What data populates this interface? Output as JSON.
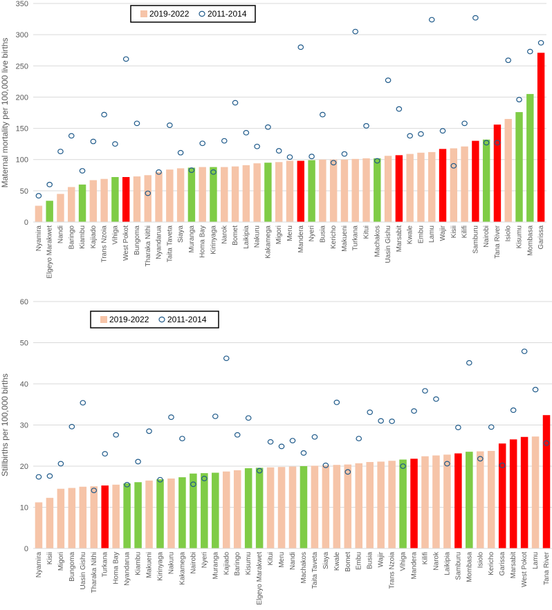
{
  "colors": {
    "neutral": "#f6c4a8",
    "green": "#7fcc46",
    "red": "#ff0000",
    "circle": "#1f5a8a",
    "grid": "#d9d9d9",
    "axis_text": "#595959"
  },
  "chart_data": [
    {
      "type": "bar",
      "ylabel": "Maternal mortality per 100,000 live births",
      "ylim": [
        0,
        350
      ],
      "yticks": [
        0,
        50,
        100,
        150,
        200,
        250,
        300,
        350
      ],
      "legend": {
        "position": "top-left",
        "items": [
          "2019-2022",
          "2011-2014"
        ]
      },
      "series_names": [
        "2019-2022",
        "2011-2014"
      ],
      "categories": [
        "Nyamira",
        "Elgeyo Marakwet",
        "Nandi",
        "Baringo",
        "Kiambu",
        "Kajiado",
        "Trans Nzoia",
        "Vihiga",
        "West Pokot",
        "Bungoma",
        "Tharaka Nithi",
        "Nyandarua",
        "Taita Taveta",
        "Siaya",
        "Muranga",
        "Homa Bay",
        "Kirinyaga",
        "Narok",
        "Bomet",
        "Laikipia",
        "Nakuru",
        "Kakamega",
        "Migori",
        "Meru",
        "Mandera",
        "Nyeri",
        "Busia",
        "Kericho",
        "Makueni",
        "Turkana",
        "Kitui",
        "Machakos",
        "Uasin Gishu",
        "Marsabit",
        "Kwale",
        "Embu",
        "Lamu",
        "Wajir",
        "Kisii",
        "Kilifi",
        "Samburu",
        "Nairobi",
        "Tana River",
        "Isiolo",
        "Kisumu",
        "Mombasa",
        "Garissa"
      ],
      "values_2019_2022": [
        26,
        34,
        45,
        56,
        60,
        67,
        69,
        72,
        72,
        73,
        75,
        80,
        84,
        86,
        87,
        88,
        88,
        88,
        89,
        91,
        94,
        95,
        96,
        98,
        98,
        99,
        100,
        100,
        100,
        101,
        102,
        102,
        106,
        107,
        109,
        111,
        112,
        117,
        118,
        121,
        130,
        132,
        156,
        165,
        176,
        205,
        271
      ],
      "values_2011_2014": [
        42,
        60,
        113,
        138,
        82,
        129,
        172,
        125,
        261,
        158,
        46,
        80,
        155,
        111,
        83,
        126,
        80,
        130,
        191,
        143,
        121,
        152,
        114,
        104,
        280,
        105,
        172,
        95,
        109,
        305,
        154,
        98,
        227,
        181,
        138,
        141,
        324,
        146,
        90,
        158,
        327,
        127,
        127,
        259,
        196,
        273,
        287
      ],
      "bar_colors": [
        "neutral",
        "green",
        "neutral",
        "neutral",
        "green",
        "neutral",
        "neutral",
        "green",
        "red",
        "neutral",
        "neutral",
        "neutral",
        "neutral",
        "neutral",
        "green",
        "neutral",
        "green",
        "neutral",
        "neutral",
        "neutral",
        "neutral",
        "green",
        "neutral",
        "neutral",
        "red",
        "green",
        "neutral",
        "neutral",
        "neutral",
        "neutral",
        "neutral",
        "green",
        "neutral",
        "red",
        "neutral",
        "neutral",
        "neutral",
        "red",
        "neutral",
        "neutral",
        "red",
        "green",
        "red",
        "neutral",
        "green",
        "green",
        "red"
      ]
    },
    {
      "type": "bar",
      "ylabel": "Stillbirths per 100,000 births",
      "ylim": [
        0,
        60
      ],
      "yticks": [
        0,
        10,
        20,
        30,
        40,
        50,
        60
      ],
      "legend": {
        "position": "top-left",
        "items": [
          "2019-2022",
          "2011-2014"
        ]
      },
      "series_names": [
        "2019-2022",
        "2011-2014"
      ],
      "categories": [
        "Nyamira",
        "Kisii",
        "Migori",
        "Bungoma",
        "Uasin Gishu",
        "Tharaka Nithi",
        "Turkana",
        "Homa Bay",
        "Nyandarua",
        "Kiambu",
        "Makueni",
        "Kirinyaga",
        "Nakuru",
        "Kakamega",
        "Nairobi",
        "Nyeri",
        "Muranga",
        "Kajiado",
        "Baringo",
        "Kisumu",
        "Elgeyo Marakwet",
        "Kitui",
        "Meru",
        "Nandi",
        "Machakos",
        "Taita Taveta",
        "Siaya",
        "Kwale",
        "Bomet",
        "Embu",
        "Busia",
        "Wajir",
        "Trans Nzoia",
        "Vihiga",
        "Mandera",
        "Kilifi",
        "Narok",
        "Laikipia",
        "Samburu",
        "Mombasa",
        "Isiolo",
        "Kericho",
        "Garissa",
        "Marsabit",
        "West Pokot",
        "Lamu",
        "Tana River"
      ],
      "values_2019_2022": [
        11.2,
        12.3,
        14.5,
        14.7,
        15.0,
        15.1,
        15.3,
        15.5,
        15.8,
        16.1,
        16.5,
        16.8,
        17.0,
        17.3,
        18.2,
        18.3,
        18.4,
        18.7,
        19.0,
        19.5,
        19.6,
        19.7,
        19.8,
        19.9,
        20.0,
        20.1,
        20.2,
        20.3,
        20.4,
        20.7,
        21.0,
        21.1,
        21.3,
        21.6,
        21.8,
        22.4,
        22.6,
        22.8,
        23.1,
        23.5,
        23.6,
        23.7,
        25.5,
        26.5,
        27.1,
        27.2,
        32.4
      ],
      "values_2011_2014": [
        17.4,
        17.6,
        20.6,
        29.6,
        35.4,
        14.1,
        23.0,
        27.6,
        15.5,
        21.1,
        28.5,
        16.7,
        31.9,
        26.7,
        15.6,
        17.0,
        32.1,
        46.2,
        27.6,
        31.7,
        18.9,
        25.9,
        24.8,
        26.2,
        23.2,
        27.1,
        20.2,
        35.5,
        18.6,
        26.7,
        33.1,
        31.0,
        30.9,
        20.0,
        33.4,
        38.3,
        36.3,
        20.6,
        29.4,
        45.1,
        21.8,
        29.5,
        20.2,
        33.6,
        47.9,
        38.6,
        25.6
      ],
      "bar_colors": [
        "neutral",
        "neutral",
        "neutral",
        "neutral",
        "neutral",
        "neutral",
        "red",
        "neutral",
        "green",
        "green",
        "neutral",
        "green",
        "neutral",
        "green",
        "green",
        "green",
        "green",
        "neutral",
        "neutral",
        "green",
        "green",
        "neutral",
        "neutral",
        "neutral",
        "green",
        "neutral",
        "neutral",
        "neutral",
        "neutral",
        "neutral",
        "neutral",
        "neutral",
        "neutral",
        "green",
        "red",
        "neutral",
        "neutral",
        "neutral",
        "red",
        "green",
        "neutral",
        "neutral",
        "red",
        "red",
        "red",
        "neutral",
        "red"
      ]
    }
  ]
}
